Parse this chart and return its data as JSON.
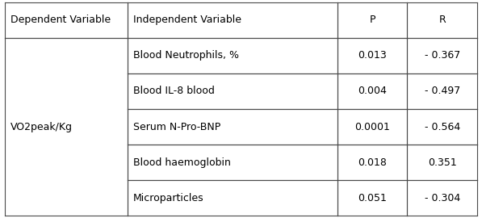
{
  "col_headers": [
    "Dependent Variable",
    "Independent Variable",
    "P",
    "R"
  ],
  "dependent_var": "VO2peak/Kg",
  "rows": [
    [
      "Blood Neutrophils, %",
      "0.013",
      "- 0.367"
    ],
    [
      "Blood IL-8 blood",
      "0.004",
      "- 0.497"
    ],
    [
      "Serum N-Pro-BNP",
      "0.0001",
      "- 0.564"
    ],
    [
      "Blood haemoglobin",
      "0.018",
      "0.351"
    ],
    [
      "Microparticles",
      "0.051",
      "- 0.304"
    ]
  ],
  "background_color": "#ffffff",
  "border_color": "#4a4a4a",
  "text_color": "#000000",
  "font_size": 9.0,
  "header_font_size": 9.0,
  "fig_width": 5.97,
  "fig_height": 2.7,
  "dpi": 100
}
